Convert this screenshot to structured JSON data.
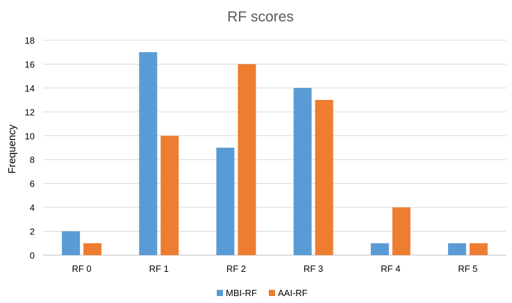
{
  "chart_data": {
    "type": "bar",
    "title": "RF scores",
    "xlabel": "",
    "ylabel": "Frequency",
    "categories": [
      "RF 0",
      "RF 1",
      "RF 2",
      "RF 3",
      "RF 4",
      "RF 5"
    ],
    "series": [
      {
        "name": "MBI-RF",
        "values": [
          2,
          17,
          9,
          14,
          1,
          1
        ],
        "color": "#5B9BD5"
      },
      {
        "name": "AAI-RF",
        "values": [
          1,
          10,
          16,
          13,
          4,
          1
        ],
        "color": "#ED7D31"
      }
    ],
    "ylim": [
      0,
      18
    ],
    "yticks": [
      0,
      2,
      4,
      6,
      8,
      10,
      12,
      14,
      16,
      18
    ],
    "grid": true,
    "legend": "bottom-center",
    "data_labels": false
  }
}
